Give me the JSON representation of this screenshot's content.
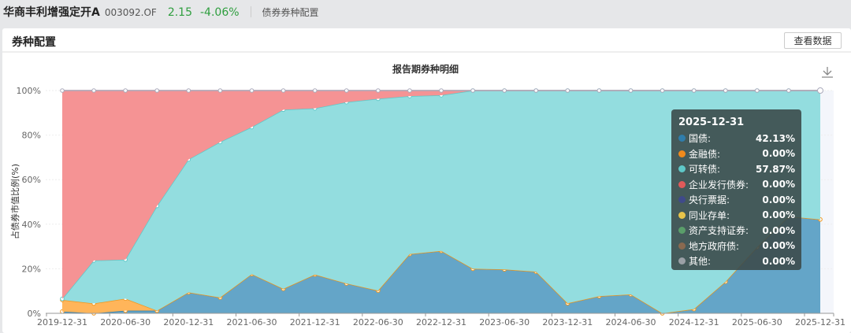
{
  "header": {
    "fund_name": "华商丰利增强定开A",
    "fund_code": "003092.OF",
    "nav": "2.15",
    "change": "-4.06%",
    "section": "债券券种配置"
  },
  "panel": {
    "title": "券种配置",
    "view_data_button": "查看数据",
    "download_icon": "download-icon"
  },
  "tooltip": {
    "date": "2025-12-31",
    "rows": [
      {
        "label": "国债:",
        "value": "42.13%",
        "color": "#2f7dab"
      },
      {
        "label": "金融债:",
        "value": "0.00%",
        "color": "#f08a1c"
      },
      {
        "label": "可转债:",
        "value": "57.87%",
        "color": "#5fc8c8"
      },
      {
        "label": "企业发行债券:",
        "value": "0.00%",
        "color": "#e05a5a"
      },
      {
        "label": "央行票据:",
        "value": "0.00%",
        "color": "#3f4a8a"
      },
      {
        "label": "同业存单:",
        "value": "0.00%",
        "color": "#e8c44a"
      },
      {
        "label": "资产支持证券:",
        "value": "0.00%",
        "color": "#5a9e6a"
      },
      {
        "label": "地方政府债:",
        "value": "0.00%",
        "color": "#8a6a50"
      },
      {
        "label": "其他:",
        "value": "0.00%",
        "color": "#9aa0a6"
      }
    ]
  },
  "chart_data": {
    "type": "area",
    "stacked": true,
    "title": "报告期券种明细",
    "ylabel": "占债券市值比例(%)",
    "ylim": [
      0,
      100
    ],
    "yticks": [
      "0%",
      "20%",
      "40%",
      "60%",
      "80%",
      "100%"
    ],
    "xtick_labels": [
      "2019-12-31",
      "2020-06-30",
      "2020-12-31",
      "2021-06-30",
      "2021-12-31",
      "2022-06-30",
      "2022-12-31",
      "2023-06-30",
      "2023-12-31",
      "2024-06-30",
      "2024-12-31",
      "2025-06-30",
      "2025-12-31"
    ],
    "x": [
      "2019-12-31",
      "2020-03-31",
      "2020-06-30",
      "2020-09-30",
      "2020-12-31",
      "2021-03-31",
      "2021-06-30",
      "2021-09-30",
      "2021-12-31",
      "2022-03-31",
      "2022-06-30",
      "2022-09-30",
      "2022-12-31",
      "2023-03-31",
      "2023-06-30",
      "2023-09-30",
      "2023-12-31",
      "2024-03-31",
      "2024-06-30",
      "2024-09-30",
      "2024-12-31",
      "2025-03-31",
      "2025-06-30",
      "2025-09-30",
      "2025-12-31"
    ],
    "series": [
      {
        "name": "国债",
        "color": "#64a5c8",
        "values": [
          0.8,
          0,
          1.2,
          1.2,
          9.4,
          7.1,
          17.6,
          11.0,
          17.4,
          13.4,
          10.2,
          26.6,
          28.0,
          20.0,
          19.7,
          18.7,
          4.5,
          7.7,
          8.5,
          0,
          1.9,
          14.2,
          29.7,
          43.5,
          42.13
        ]
      },
      {
        "name": "金融债",
        "color": "#ffb55a",
        "values": [
          5.2,
          4.4,
          5.4,
          0,
          0,
          0,
          0,
          0,
          0,
          0,
          0,
          0,
          0,
          0,
          0,
          0,
          0,
          0,
          0,
          0,
          0,
          0,
          0,
          0,
          0
        ]
      },
      {
        "name": "可转债",
        "color": "#93dddf",
        "values": [
          0.5,
          19.3,
          17.5,
          47.0,
          59.7,
          69.8,
          66.0,
          80.4,
          74.6,
          81.4,
          86.1,
          70.9,
          69.9,
          80.0,
          80.3,
          81.3,
          95.5,
          92.3,
          91.5,
          100,
          98.1,
          85.8,
          70.3,
          56.5,
          57.87
        ]
      },
      {
        "name": "企业发行债券",
        "color": "#f59394",
        "values": [
          93.5,
          76.3,
          75.9,
          51.8,
          30.9,
          23.1,
          16.4,
          8.6,
          8.0,
          5.2,
          3.7,
          2.5,
          2.1,
          0,
          0,
          0,
          0,
          0,
          0,
          0,
          0,
          0,
          0,
          0,
          0
        ]
      }
    ],
    "grid": true,
    "legend": "none"
  }
}
